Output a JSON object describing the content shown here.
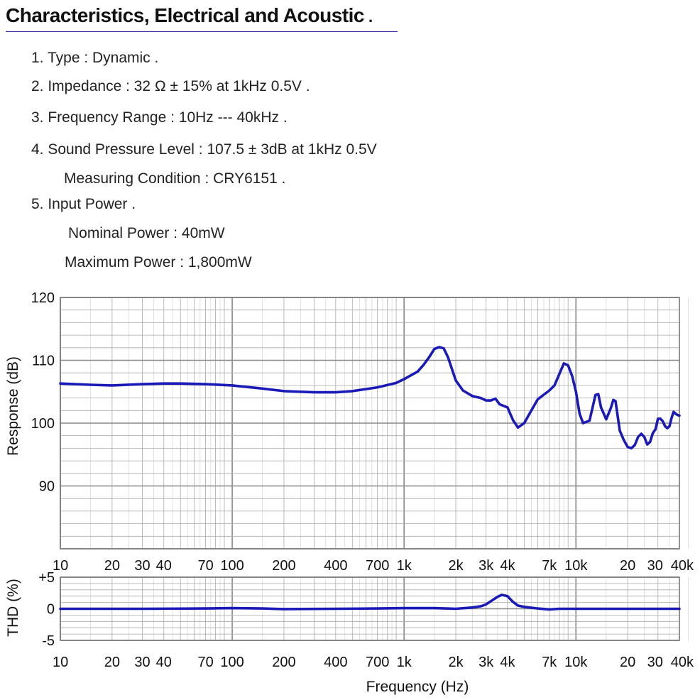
{
  "title": "Characteristics, Electrical and Acoustic",
  "title_suffix": ".",
  "specs": [
    "1. Type : Dynamic  .",
    "2. Impedance : 32 Ω ± 15% at 1kHz 0.5V  .",
    "3. Frequency Range : 10Hz --- 40kHz  .",
    "4. Sound Pressure Level :  107.5 ± 3dB at 1kHz 0.5V",
    "Measuring Condition : CRY6151  .",
    "5. Input Power  .",
    "Nominal Power : 40mW",
    "Maximum Power : 1,800mW"
  ],
  "colors": {
    "curve": "#1a1ab8",
    "grid": "#aaaaaa",
    "grid_major": "#888888",
    "frame": "#777777"
  },
  "chart_data": [
    {
      "type": "line",
      "title": "",
      "xlabel": "",
      "ylabel": "Response (dB)",
      "xscale": "log",
      "xlim": [
        10,
        40000
      ],
      "ylim": [
        80,
        120
      ],
      "y_ticks": [
        "120",
        "110",
        "100",
        "90"
      ],
      "y_tick_values": [
        120,
        110,
        100,
        90
      ],
      "x_ticks": [
        "10",
        "20",
        "30",
        "40",
        "70",
        "100",
        "200",
        "400",
        "700",
        "1k",
        "2k",
        "3k",
        "4k",
        "7k",
        "10k",
        "20",
        "30",
        "40k"
      ],
      "x_tick_values": [
        10,
        20,
        30,
        40,
        70,
        100,
        200,
        400,
        700,
        1000,
        2000,
        3000,
        4000,
        7000,
        10000,
        20000,
        30000,
        40000
      ],
      "grid": true,
      "series": [
        {
          "x": [
            10,
            15,
            20,
            30,
            40,
            50,
            70,
            100,
            150,
            200,
            300,
            400,
            500,
            700,
            900,
            1000,
            1200,
            1300,
            1400,
            1500,
            1600,
            1700,
            1800,
            2000,
            2200,
            2500,
            2800,
            3000,
            3200,
            3400,
            3600,
            4000,
            4300,
            4600,
            5000,
            5500,
            6000,
            7000,
            7500,
            8000,
            8500,
            9000,
            9500,
            10000,
            10500,
            11000,
            12000,
            12500,
            13000,
            13500,
            14000,
            15000,
            16000,
            16500,
            17000,
            18000,
            19000,
            20000,
            21000,
            22000,
            23000,
            24000,
            25000,
            26000,
            27000,
            28000,
            29000,
            30000,
            31000,
            32000,
            33000,
            34000,
            35000,
            36000,
            37000,
            38000,
            39000,
            40000
          ],
          "values": [
            106.3,
            106.1,
            106.0,
            106.2,
            106.3,
            106.3,
            106.2,
            106.0,
            105.5,
            105.1,
            104.9,
            104.9,
            105.1,
            105.7,
            106.4,
            107.0,
            108.2,
            109.3,
            110.5,
            111.8,
            112.1,
            111.9,
            110.5,
            106.8,
            105.2,
            104.3,
            104.0,
            103.6,
            103.6,
            103.9,
            103.0,
            102.5,
            100.5,
            99.3,
            100.0,
            102.0,
            103.8,
            105.2,
            106.0,
            107.8,
            109.5,
            109.2,
            107.5,
            105.0,
            101.5,
            100.0,
            100.4,
            102.5,
            104.5,
            104.6,
            102.5,
            100.6,
            102.5,
            103.7,
            103.5,
            98.8,
            97.3,
            96.2,
            96.0,
            96.5,
            97.8,
            98.3,
            97.8,
            96.6,
            97.0,
            98.4,
            99.0,
            100.7,
            100.7,
            100.3,
            99.5,
            99.2,
            99.5,
            100.8,
            101.8,
            101.5,
            101.3,
            101.2
          ]
        }
      ]
    },
    {
      "type": "line",
      "title": "",
      "xlabel": "Frequency (Hz)",
      "ylabel": "THD (%)",
      "xscale": "log",
      "xlim": [
        10,
        40000
      ],
      "ylim": [
        -5,
        5
      ],
      "y_ticks": [
        "+5",
        "0",
        "-5"
      ],
      "y_tick_values": [
        5,
        0,
        -5
      ],
      "x_ticks": [
        "10",
        "20",
        "30",
        "40",
        "70",
        "100",
        "200",
        "400",
        "700",
        "1k",
        "2k",
        "3k",
        "4k",
        "7k",
        "10k",
        "20",
        "30",
        "40k"
      ],
      "x_tick_values": [
        10,
        20,
        30,
        40,
        70,
        100,
        200,
        400,
        700,
        1000,
        2000,
        3000,
        4000,
        7000,
        10000,
        20000,
        30000,
        40000
      ],
      "grid": true,
      "series": [
        {
          "x": [
            10,
            30,
            70,
            100,
            150,
            200,
            400,
            700,
            1000,
            1500,
            2000,
            2500,
            2800,
            3000,
            3200,
            3500,
            3700,
            4000,
            4300,
            4600,
            5000,
            6000,
            7000,
            8000,
            10000,
            20000,
            40000
          ],
          "values": [
            0,
            0,
            0.05,
            0.1,
            0.05,
            -0.05,
            0,
            0.05,
            0.1,
            0.1,
            0,
            0.2,
            0.4,
            0.7,
            1.2,
            1.9,
            2.2,
            2.0,
            1.1,
            0.5,
            0.3,
            0.05,
            -0.1,
            0,
            0,
            0,
            0
          ]
        }
      ]
    }
  ]
}
